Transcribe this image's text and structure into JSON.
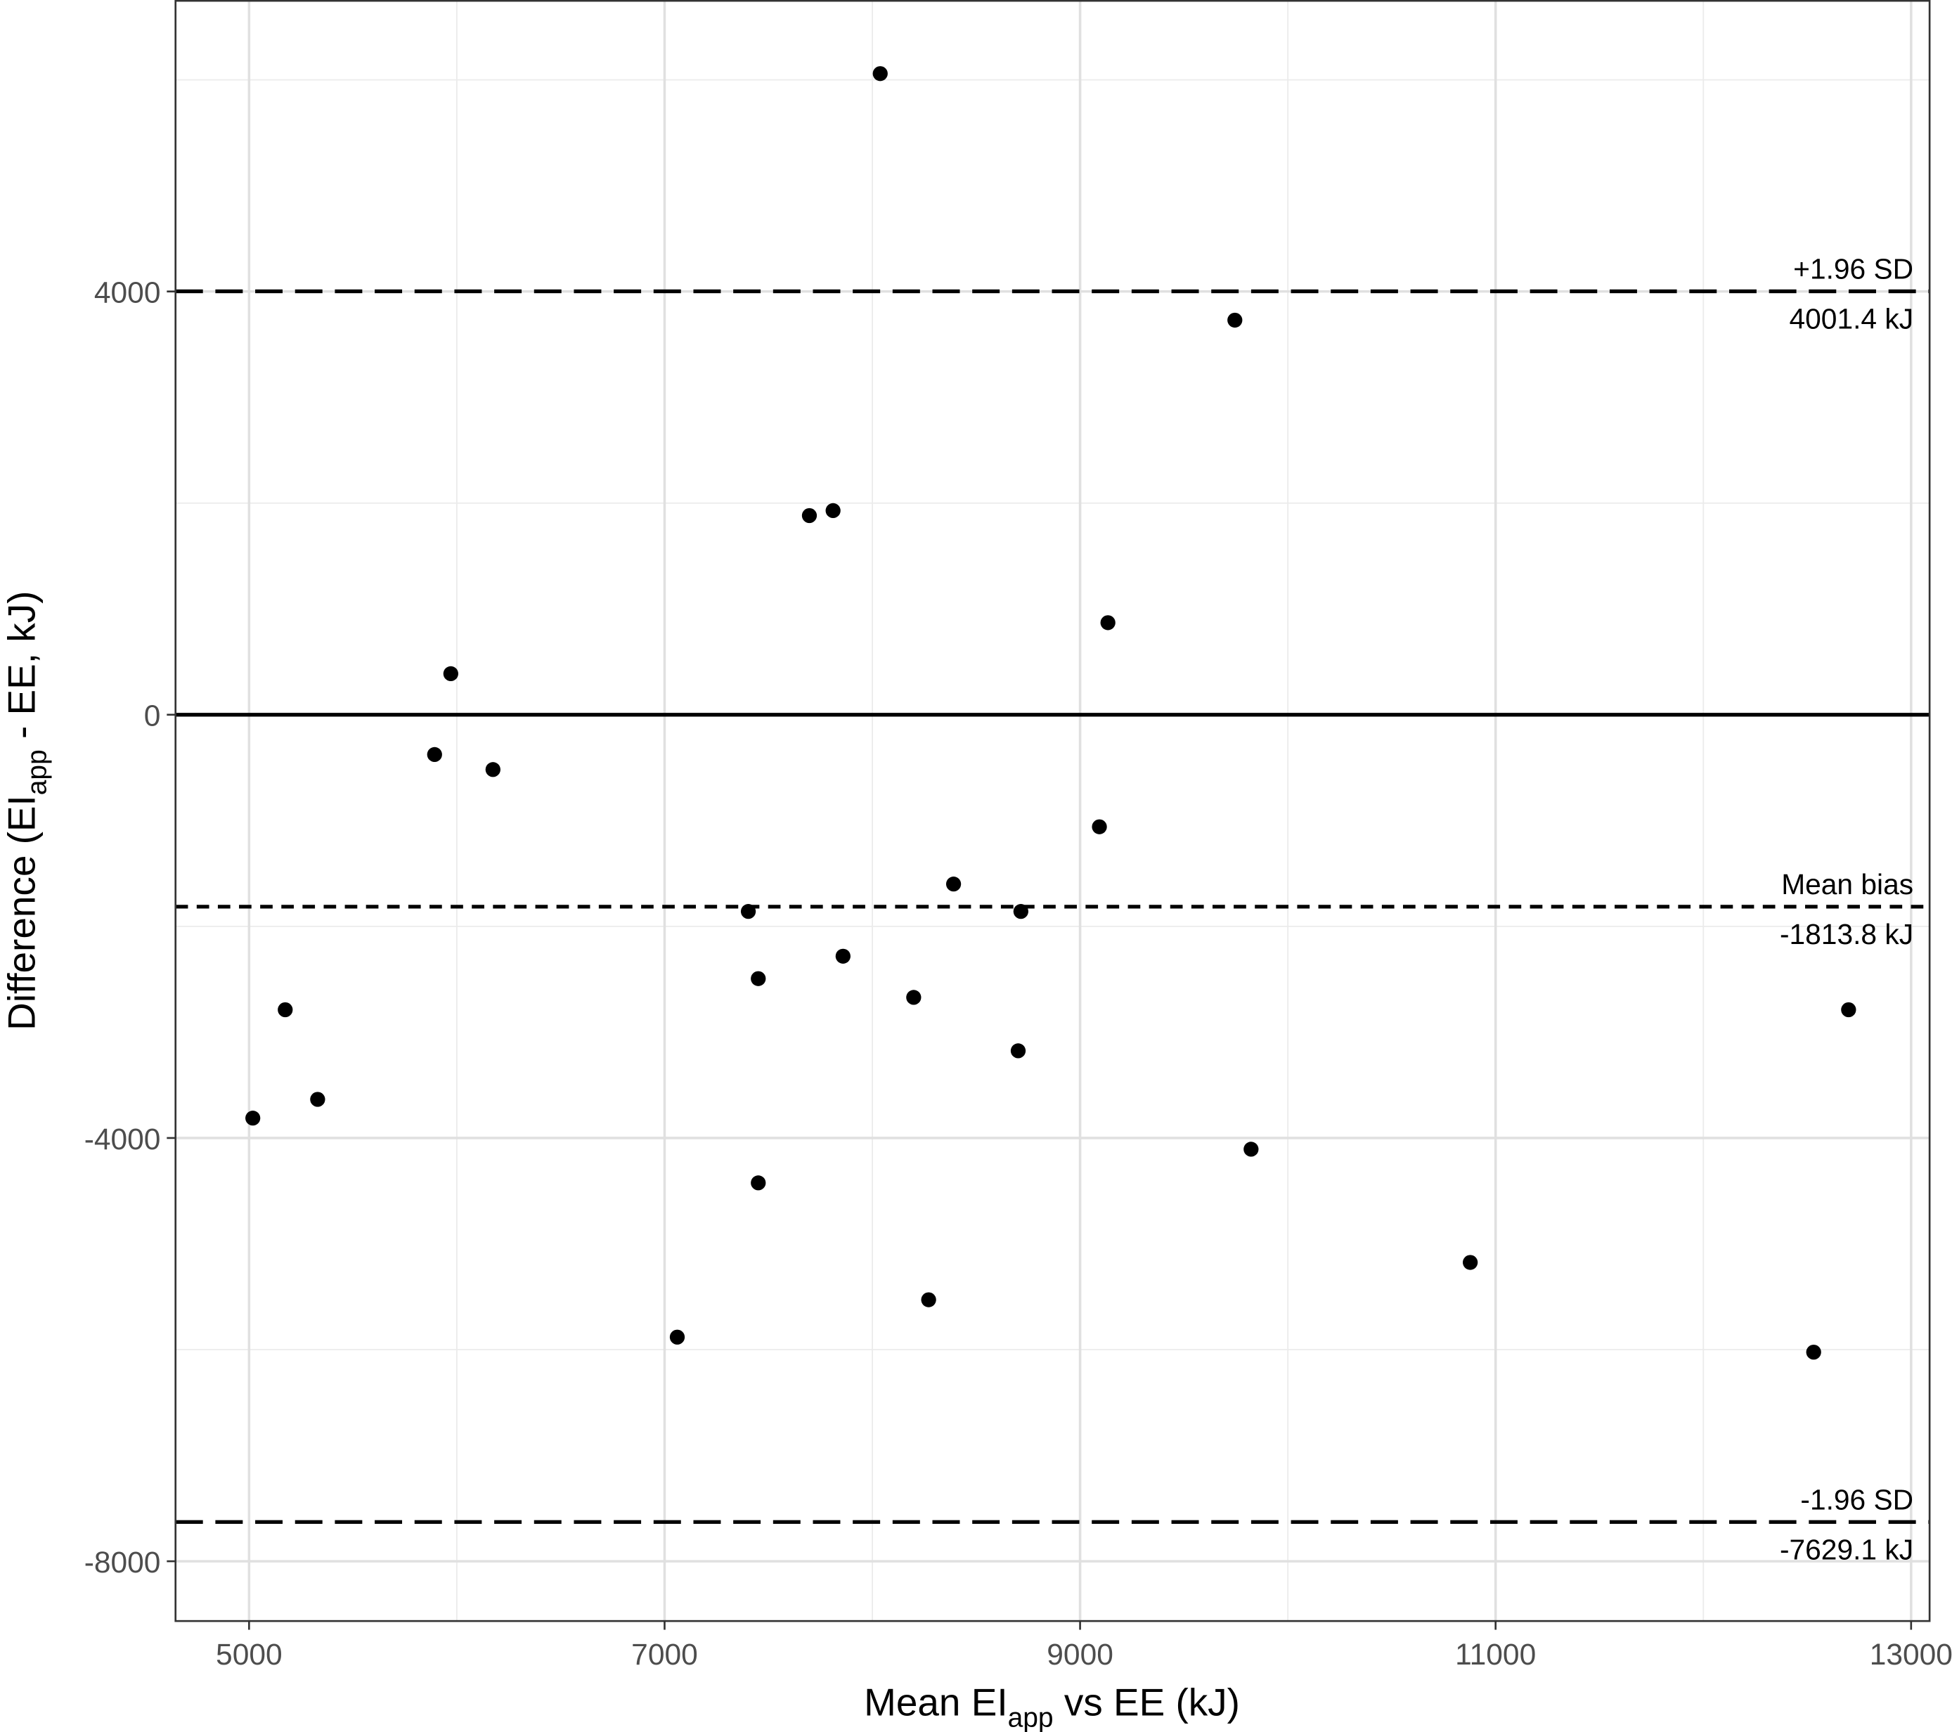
{
  "chart_data": {
    "type": "scatter",
    "title": "",
    "xlabel": {
      "main": "Mean EI",
      "sub": "app",
      "rest": " vs EE (kJ)"
    },
    "ylabel": {
      "main": "Difference (EI",
      "sub": "app",
      "rest": " - EE, kJ)"
    },
    "xlim": [
      4646,
      13089
    ],
    "ylim": [
      -8565,
      6753
    ],
    "x_ticks": [
      5000,
      7000,
      9000,
      11000,
      13000
    ],
    "y_ticks": [
      -8000,
      -4000,
      0,
      4000
    ],
    "x_minor": [
      6000,
      8000,
      10000,
      12000
    ],
    "y_minor": [
      -6000,
      -2000,
      2000,
      6000
    ],
    "grid": true,
    "point_color": "#000000",
    "reference_lines": [
      {
        "value": 0,
        "style": "solid",
        "label_top": "",
        "label_bottom": ""
      },
      {
        "value": 4001.4,
        "style": "long-dash",
        "label_top": "+1.96 SD",
        "label_bottom": "4001.4 kJ"
      },
      {
        "value": -1813.8,
        "style": "short-dash",
        "label_top": "Mean bias",
        "label_bottom": "-1813.8 kJ"
      },
      {
        "value": -7629.1,
        "style": "long-dash",
        "label_top": "-1.96 SD",
        "label_bottom": "-7629.1 kJ"
      }
    ],
    "points": [
      [
        8038,
        6059
      ],
      [
        9745,
        3729
      ],
      [
        7697,
        1882
      ],
      [
        7811,
        1929
      ],
      [
        9134,
        870
      ],
      [
        5971,
        388
      ],
      [
        5893,
        -376
      ],
      [
        6174,
        -518
      ],
      [
        9093,
        -1059
      ],
      [
        8391,
        -1600
      ],
      [
        7403,
        -1859
      ],
      [
        8715,
        -1859
      ],
      [
        7859,
        -2282
      ],
      [
        7451,
        -2494
      ],
      [
        5174,
        -2788
      ],
      [
        8199,
        -2671
      ],
      [
        12699,
        -2788
      ],
      [
        8702,
        -3176
      ],
      [
        5330,
        -3635
      ],
      [
        5018,
        -3812
      ],
      [
        9823,
        -4106
      ],
      [
        7451,
        -4424
      ],
      [
        10878,
        -5176
      ],
      [
        8271,
        -5529
      ],
      [
        7061,
        -5882
      ],
      [
        12531,
        -6024
      ]
    ]
  }
}
